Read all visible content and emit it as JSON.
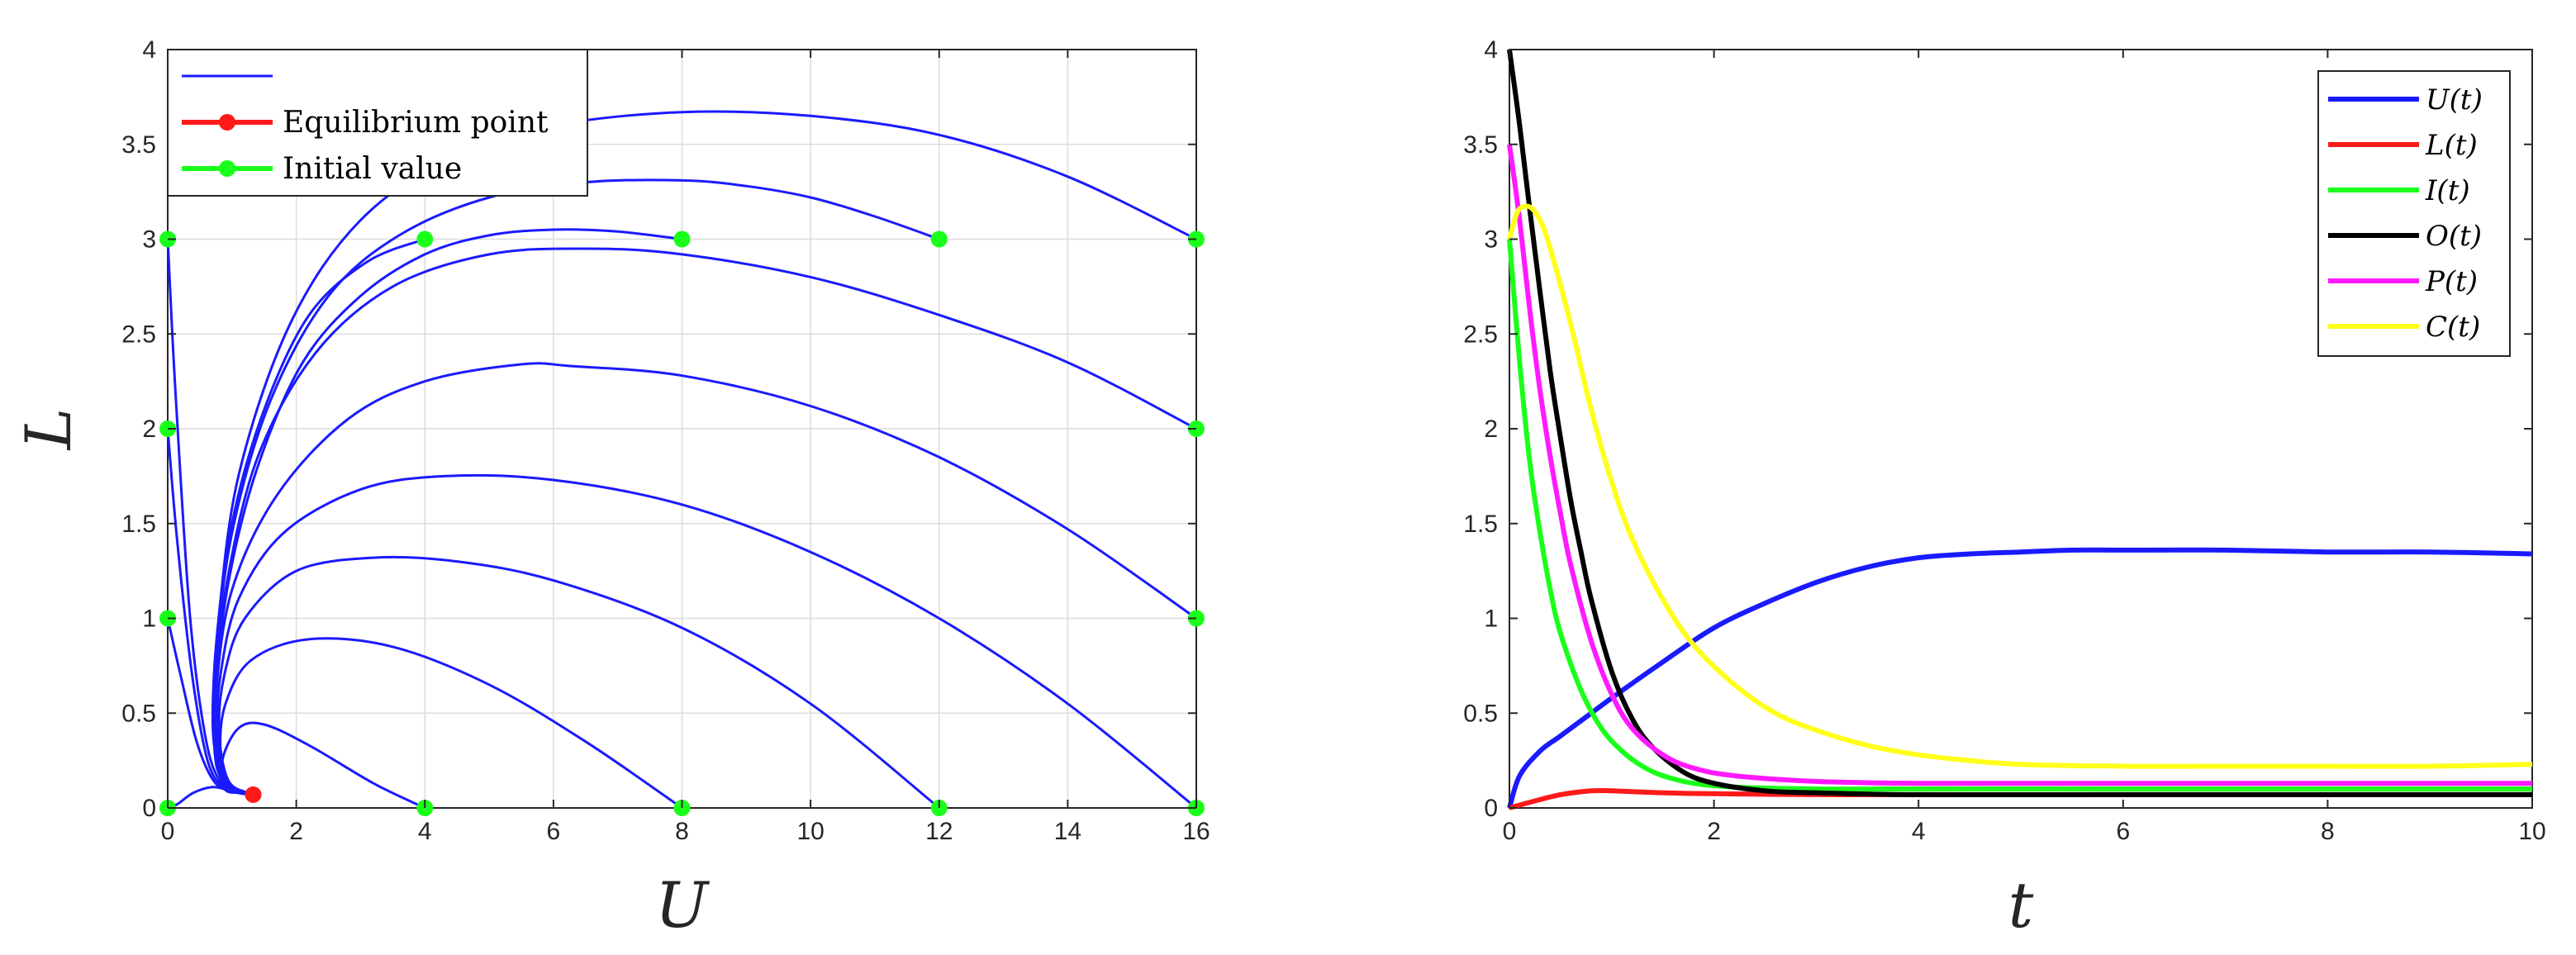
{
  "chart_data": [
    {
      "type": "line",
      "title": "",
      "xlabel": "U",
      "ylabel": "L",
      "xlim": [
        0,
        16
      ],
      "ylim": [
        0,
        4
      ],
      "xticks": [
        0,
        2,
        4,
        6,
        8,
        10,
        12,
        14,
        16
      ],
      "yticks": [
        0,
        0.5,
        1,
        1.5,
        2,
        2.5,
        3,
        3.5,
        4
      ],
      "grid": true,
      "legend_position": "top-left",
      "legend": [
        {
          "label": "",
          "color": "#1a1aff",
          "style": "line"
        },
        {
          "label": "Equilibrium point",
          "color": "#ff1a1a",
          "style": "line-marker"
        },
        {
          "label": "Initial value",
          "color": "#1aff1a",
          "style": "line-marker"
        }
      ],
      "equilibrium_point": {
        "x": 1.33,
        "y": 0.07,
        "color": "#ff1a1a"
      },
      "initial_values": [
        [
          0,
          0
        ],
        [
          0,
          1
        ],
        [
          0,
          2
        ],
        [
          0,
          3
        ],
        [
          4,
          0
        ],
        [
          8,
          0
        ],
        [
          12,
          0
        ],
        [
          16,
          0
        ],
        [
          16,
          1
        ],
        [
          16,
          2
        ],
        [
          16,
          3
        ],
        [
          4,
          3
        ],
        [
          8,
          3
        ],
        [
          12,
          3
        ]
      ],
      "series": [
        {
          "values": [
            [
              0,
              0
            ],
            [
              0.15,
              0.02
            ],
            [
              0.4,
              0.08
            ],
            [
              0.7,
              0.11
            ],
            [
              1.0,
              0.09
            ],
            [
              1.33,
              0.07
            ]
          ]
        },
        {
          "values": [
            [
              0,
              3
            ],
            [
              0.12,
              2.2
            ],
            [
              0.35,
              1.0
            ],
            [
              0.6,
              0.35
            ],
            [
              0.85,
              0.12
            ],
            [
              1.1,
              0.08
            ],
            [
              1.33,
              0.07
            ]
          ]
        },
        {
          "values": [
            [
              0,
              2
            ],
            [
              0.15,
              1.4
            ],
            [
              0.38,
              0.7
            ],
            [
              0.62,
              0.25
            ],
            [
              0.88,
              0.1
            ],
            [
              1.1,
              0.08
            ],
            [
              1.33,
              0.07
            ]
          ]
        },
        {
          "values": [
            [
              0,
              1
            ],
            [
              0.2,
              0.7
            ],
            [
              0.45,
              0.35
            ],
            [
              0.7,
              0.15
            ],
            [
              0.95,
              0.09
            ],
            [
              1.33,
              0.07
            ]
          ]
        },
        {
          "values": [
            [
              4,
              0
            ],
            [
              3.2,
              0.13
            ],
            [
              2.2,
              0.33
            ],
            [
              1.5,
              0.44
            ],
            [
              1.1,
              0.42
            ],
            [
              0.85,
              0.25
            ],
            [
              0.95,
              0.12
            ],
            [
              1.33,
              0.07
            ]
          ]
        },
        {
          "values": [
            [
              8,
              0
            ],
            [
              6.5,
              0.35
            ],
            [
              5,
              0.65
            ],
            [
              3.5,
              0.85
            ],
            [
              2.2,
              0.89
            ],
            [
              1.3,
              0.78
            ],
            [
              0.9,
              0.55
            ],
            [
              0.82,
              0.3
            ],
            [
              0.95,
              0.13
            ],
            [
              1.33,
              0.07
            ]
          ]
        },
        {
          "values": [
            [
              12,
              0
            ],
            [
              10,
              0.55
            ],
            [
              8,
              0.95
            ],
            [
              6,
              1.2
            ],
            [
              4.5,
              1.3
            ],
            [
              3.2,
              1.32
            ],
            [
              2,
              1.25
            ],
            [
              1.2,
              1.0
            ],
            [
              0.88,
              0.7
            ],
            [
              0.8,
              0.4
            ],
            [
              0.95,
              0.14
            ],
            [
              1.33,
              0.07
            ]
          ]
        },
        {
          "values": [
            [
              16,
              0
            ],
            [
              14,
              0.55
            ],
            [
              12,
              1.0
            ],
            [
              10,
              1.35
            ],
            [
              8,
              1.6
            ],
            [
              6,
              1.73
            ],
            [
              4.3,
              1.75
            ],
            [
              3,
              1.68
            ],
            [
              1.8,
              1.45
            ],
            [
              1.1,
              1.1
            ],
            [
              0.82,
              0.7
            ],
            [
              0.78,
              0.4
            ],
            [
              0.95,
              0.14
            ],
            [
              1.33,
              0.07
            ]
          ]
        },
        {
          "values": [
            [
              16,
              1
            ],
            [
              14,
              1.47
            ],
            [
              12,
              1.85
            ],
            [
              10,
              2.12
            ],
            [
              8,
              2.28
            ],
            [
              6.3,
              2.33
            ],
            [
              5.5,
              2.34
            ],
            [
              4,
              2.25
            ],
            [
              2.8,
              2.05
            ],
            [
              1.7,
              1.65
            ],
            [
              1.0,
              1.15
            ],
            [
              0.75,
              0.6
            ],
            [
              0.78,
              0.3
            ],
            [
              0.95,
              0.12
            ],
            [
              1.33,
              0.07
            ]
          ]
        },
        {
          "values": [
            [
              16,
              2
            ],
            [
              14,
              2.35
            ],
            [
              12,
              2.6
            ],
            [
              10,
              2.8
            ],
            [
              8,
              2.92
            ],
            [
              6.5,
              2.95
            ],
            [
              5,
              2.92
            ],
            [
              3.5,
              2.75
            ],
            [
              2.3,
              2.4
            ],
            [
              1.4,
              1.85
            ],
            [
              0.9,
              1.15
            ],
            [
              0.72,
              0.55
            ],
            [
              0.78,
              0.25
            ],
            [
              0.95,
              0.11
            ],
            [
              1.33,
              0.07
            ]
          ]
        },
        {
          "values": [
            [
              16,
              3
            ],
            [
              14,
              3.33
            ],
            [
              12,
              3.55
            ],
            [
              10,
              3.65
            ],
            [
              8,
              3.67
            ],
            [
              6,
              3.6
            ],
            [
              4.5,
              3.45
            ],
            [
              3,
              3.1
            ],
            [
              1.9,
              2.55
            ],
            [
              1.1,
              1.75
            ],
            [
              0.78,
              0.95
            ],
            [
              0.7,
              0.45
            ],
            [
              0.8,
              0.2
            ],
            [
              0.95,
              0.1
            ],
            [
              1.33,
              0.07
            ]
          ]
        },
        {
          "values": [
            [
              4,
              3
            ],
            [
              3.1,
              2.88
            ],
            [
              2.2,
              2.6
            ],
            [
              1.5,
              2.1
            ],
            [
              1.0,
              1.5
            ],
            [
              0.75,
              0.85
            ],
            [
              0.72,
              0.4
            ],
            [
              0.82,
              0.18
            ],
            [
              1.0,
              0.1
            ],
            [
              1.33,
              0.07
            ]
          ]
        },
        {
          "values": [
            [
              8,
              3
            ],
            [
              7,
              3.04
            ],
            [
              6,
              3.05
            ],
            [
              5,
              3.02
            ],
            [
              4,
              2.92
            ],
            [
              3,
              2.7
            ],
            [
              2.1,
              2.35
            ],
            [
              1.4,
              1.8
            ],
            [
              0.95,
              1.2
            ],
            [
              0.73,
              0.6
            ],
            [
              0.75,
              0.28
            ],
            [
              0.9,
              0.12
            ],
            [
              1.33,
              0.07
            ]
          ]
        },
        {
          "values": [
            [
              12,
              3
            ],
            [
              11,
              3.12
            ],
            [
              10,
              3.22
            ],
            [
              9,
              3.28
            ],
            [
              8,
              3.31
            ],
            [
              6.5,
              3.3
            ],
            [
              5,
              3.22
            ],
            [
              3.6,
              3.02
            ],
            [
              2.5,
              2.7
            ],
            [
              1.6,
              2.15
            ],
            [
              1.0,
              1.45
            ],
            [
              0.74,
              0.75
            ],
            [
              0.72,
              0.35
            ],
            [
              0.85,
              0.15
            ],
            [
              1.33,
              0.07
            ]
          ]
        }
      ]
    },
    {
      "type": "line",
      "title": "",
      "xlabel": "t",
      "ylabel": "",
      "xlim": [
        0,
        10
      ],
      "ylim": [
        0,
        4
      ],
      "xticks": [
        0,
        2,
        4,
        6,
        8,
        10
      ],
      "yticks": [
        0,
        0.5,
        1,
        1.5,
        2,
        2.5,
        3,
        3.5,
        4
      ],
      "grid": false,
      "legend_position": "top-right",
      "series": [
        {
          "name": "U(t)",
          "color": "#1a1aff",
          "x": [
            0,
            0.1,
            0.3,
            0.5,
            0.8,
            1,
            1.5,
            2,
            2.5,
            3,
            3.5,
            4,
            4.5,
            5,
            5.5,
            6,
            7,
            8,
            9,
            10
          ],
          "values": [
            0,
            0.17,
            0.3,
            0.38,
            0.5,
            0.58,
            0.77,
            0.95,
            1.08,
            1.19,
            1.27,
            1.32,
            1.34,
            1.35,
            1.36,
            1.36,
            1.36,
            1.35,
            1.35,
            1.34
          ]
        },
        {
          "name": "L(t)",
          "color": "#ff1a1a",
          "x": [
            0,
            0.2,
            0.5,
            0.8,
            1,
            1.5,
            2,
            3,
            4,
            6,
            8,
            10
          ],
          "values": [
            0,
            0.03,
            0.07,
            0.09,
            0.09,
            0.08,
            0.075,
            0.07,
            0.07,
            0.07,
            0.07,
            0.07
          ]
        },
        {
          "name": "I(t)",
          "color": "#1aff1a",
          "x": [
            0,
            0.1,
            0.2,
            0.3,
            0.4,
            0.5,
            0.7,
            0.9,
            1.1,
            1.3,
            1.5,
            1.8,
            2.2,
            3,
            4,
            6,
            8,
            10
          ],
          "values": [
            3.0,
            2.35,
            1.82,
            1.45,
            1.15,
            0.92,
            0.62,
            0.42,
            0.3,
            0.22,
            0.17,
            0.13,
            0.11,
            0.1,
            0.1,
            0.1,
            0.1,
            0.1
          ]
        },
        {
          "name": "O(t)",
          "color": "#000000",
          "x": [
            0,
            0.1,
            0.2,
            0.3,
            0.4,
            0.5,
            0.6,
            0.7,
            0.8,
            1,
            1.2,
            1.4,
            1.7,
            2,
            2.5,
            3,
            4,
            6,
            8,
            10
          ],
          "values": [
            4.0,
            3.6,
            3.15,
            2.72,
            2.3,
            1.95,
            1.62,
            1.35,
            1.1,
            0.72,
            0.47,
            0.32,
            0.19,
            0.13,
            0.09,
            0.08,
            0.07,
            0.07,
            0.07,
            0.07
          ]
        },
        {
          "name": "P(t)",
          "color": "#ff1aff",
          "x": [
            0,
            0.1,
            0.2,
            0.3,
            0.4,
            0.5,
            0.6,
            0.8,
            1,
            1.2,
            1.5,
            1.8,
            2.2,
            3,
            4,
            6,
            8,
            10
          ],
          "values": [
            3.5,
            3.1,
            2.62,
            2.2,
            1.85,
            1.55,
            1.28,
            0.88,
            0.6,
            0.42,
            0.28,
            0.21,
            0.17,
            0.14,
            0.13,
            0.13,
            0.13,
            0.13
          ]
        },
        {
          "name": "C(t)",
          "color": "#ffff1a",
          "x": [
            0,
            0.05,
            0.1,
            0.2,
            0.3,
            0.4,
            0.6,
            0.8,
            1,
            1.2,
            1.5,
            1.8,
            2.2,
            2.6,
            3,
            3.5,
            4,
            4.5,
            5,
            6,
            7,
            8,
            9,
            10
          ],
          "values": [
            3.0,
            3.1,
            3.16,
            3.17,
            3.1,
            2.95,
            2.55,
            2.1,
            1.72,
            1.42,
            1.1,
            0.86,
            0.65,
            0.5,
            0.41,
            0.33,
            0.28,
            0.25,
            0.23,
            0.22,
            0.22,
            0.22,
            0.22,
            0.23
          ]
        }
      ]
    }
  ]
}
